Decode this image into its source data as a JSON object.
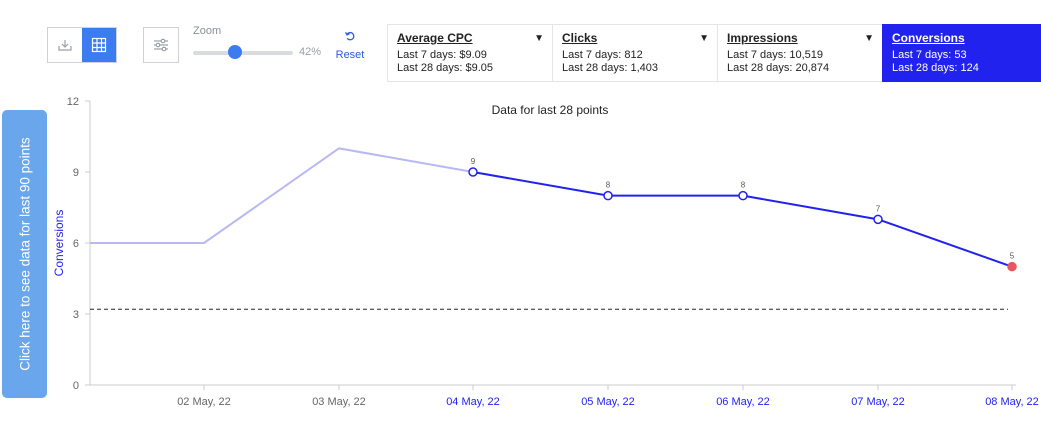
{
  "toolbar": {
    "view_toggle": {
      "chart_icon": "download-chart-icon",
      "table_icon": "grid-icon"
    },
    "filter_icon": "sliders-icon",
    "zoom": {
      "label": "Zoom",
      "value": "42%",
      "level": 0.42
    },
    "reset": {
      "icon": "undo-icon",
      "label": "Reset"
    }
  },
  "metrics": [
    {
      "title": "Average CPC",
      "line1": "Last 7 days: $9.09",
      "line2": "Last 28 days: $9.05",
      "active": false
    },
    {
      "title": "Clicks",
      "line1": "Last 7 days: 812",
      "line2": "Last 28 days: 1,403",
      "active": false
    },
    {
      "title": "Impressions",
      "line1": "Last 7 days: 10,519",
      "line2": "Last 28 days: 20,874",
      "active": false
    },
    {
      "title": "Conversions",
      "line1": "Last 7 days: 53",
      "line2": "Last 28 days: 124",
      "active": true
    }
  ],
  "side_button": {
    "label": "Click here to see data for last 90 points"
  },
  "colors": {
    "accent": "#2222ee",
    "faded": "#b8b8f2",
    "highlight": "#e8575d",
    "button": "#6aa6ec"
  },
  "chart_data": {
    "type": "line",
    "title": "Data for last 28 points",
    "xlabel": "",
    "ylabel": "Conversions",
    "ylim": [
      0,
      12
    ],
    "yticks": [
      0,
      3,
      6,
      9,
      12
    ],
    "categories": [
      "",
      "02 May, 22",
      "03 May, 22",
      "04 May, 22",
      "05 May, 22",
      "06 May, 22",
      "07 May, 22",
      "08 May, 22"
    ],
    "values": [
      6,
      6,
      10,
      9,
      8,
      8,
      7,
      5
    ],
    "labeled_from_index": 3,
    "reference_line": 3.2,
    "grid": false
  }
}
